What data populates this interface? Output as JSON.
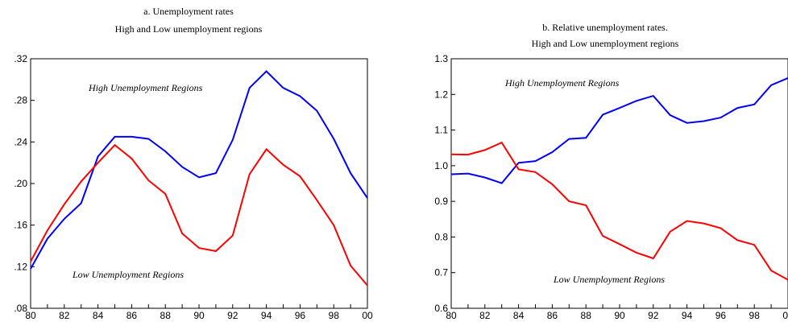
{
  "chart_data": [
    {
      "type": "line",
      "title": "a. Unemployment rates",
      "subtitle": "High and Low unemployment regions",
      "x": [
        80,
        81,
        82,
        83,
        84,
        85,
        86,
        87,
        88,
        89,
        90,
        91,
        92,
        93,
        94,
        95,
        96,
        97,
        98,
        99,
        100
      ],
      "x_tick_labels": [
        "80",
        "82",
        "84",
        "86",
        "88",
        "90",
        "92",
        "94",
        "96",
        "98",
        "00"
      ],
      "y_tick_labels": [
        ".08",
        ".12",
        ".16",
        ".20",
        ".24",
        ".28",
        ".32"
      ],
      "ylim": [
        0.08,
        0.32
      ],
      "xlim": [
        80,
        100
      ],
      "grid": false,
      "series": [
        {
          "name": "High Unemployment Regions",
          "color": "#0000ff",
          "values": [
            0.118,
            0.147,
            0.166,
            0.181,
            0.226,
            0.245,
            0.245,
            0.243,
            0.231,
            0.216,
            0.206,
            0.21,
            0.242,
            0.292,
            0.308,
            0.292,
            0.284,
            0.27,
            0.243,
            0.21,
            0.186
          ]
        },
        {
          "name": "Low Unemployment Regions",
          "color": "#ff0000",
          "values": [
            0.125,
            0.155,
            0.18,
            0.202,
            0.22,
            0.237,
            0.224,
            0.203,
            0.19,
            0.152,
            0.138,
            0.135,
            0.15,
            0.209,
            0.233,
            0.218,
            0.207,
            0.184,
            0.16,
            0.121,
            0.102
          ]
        }
      ]
    },
    {
      "type": "line",
      "title": "b. Relative unemployment rates.",
      "subtitle": "High and Low unemployment regions",
      "x": [
        80,
        81,
        82,
        83,
        84,
        85,
        86,
        87,
        88,
        89,
        90,
        91,
        92,
        93,
        94,
        95,
        96,
        97,
        98,
        99,
        100
      ],
      "x_tick_labels": [
        "80",
        "82",
        "84",
        "86",
        "88",
        "90",
        "92",
        "94",
        "96",
        "98",
        "00"
      ],
      "y_tick_labels": [
        "0.6",
        "0.7",
        "0.8",
        "0.9",
        "1.0",
        "1.1",
        "1.2",
        "1.3"
      ],
      "ylim": [
        0.6,
        1.3
      ],
      "xlim": [
        80,
        100
      ],
      "grid": false,
      "series": [
        {
          "name": "High Unemployment Regions",
          "color": "#0000ff",
          "values": [
            0.976,
            0.978,
            0.967,
            0.951,
            1.008,
            1.013,
            1.038,
            1.075,
            1.078,
            1.143,
            1.162,
            1.182,
            1.196,
            1.142,
            1.12,
            1.125,
            1.135,
            1.162,
            1.172,
            1.226,
            1.246
          ]
        },
        {
          "name": "Low Unemployment Regions",
          "color": "#ff0000",
          "values": [
            1.032,
            1.031,
            1.044,
            1.065,
            0.99,
            0.982,
            0.948,
            0.9,
            0.889,
            0.803,
            0.78,
            0.756,
            0.74,
            0.815,
            0.845,
            0.838,
            0.825,
            0.791,
            0.778,
            0.706,
            0.68
          ]
        }
      ]
    }
  ]
}
